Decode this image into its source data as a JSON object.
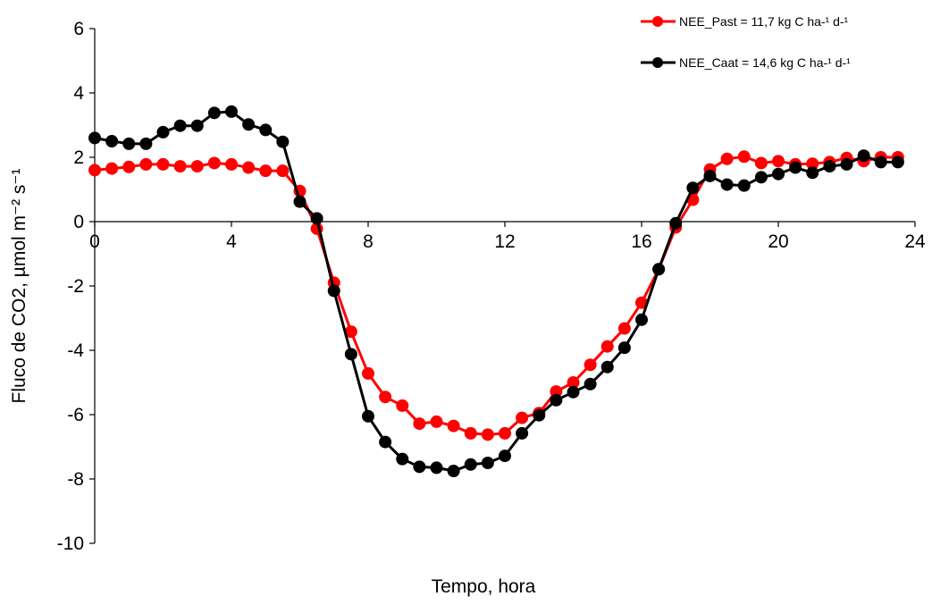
{
  "chart_data": {
    "type": "line",
    "title": "",
    "xlabel": "Tempo, hora",
    "ylabel": "Fluco de CO2, µmol m⁻² s⁻¹",
    "xlim": [
      0,
      24
    ],
    "ylim": [
      -10,
      6
    ],
    "xticks": [
      0,
      4,
      8,
      12,
      16,
      20,
      24
    ],
    "yticks": [
      -10,
      -8,
      -6,
      -4,
      -2,
      0,
      2,
      4,
      6
    ],
    "xtick_labels": [
      "0",
      "4",
      "8",
      "12",
      "16",
      "20",
      "24"
    ],
    "ytick_labels": [
      "-10",
      "-8",
      "-6",
      "-4",
      "-2",
      "0",
      "2",
      "4",
      "6"
    ],
    "grid": false,
    "legend_position": "top-right",
    "x": [
      0,
      0.5,
      1,
      1.5,
      2,
      2.5,
      3,
      3.5,
      4,
      4.5,
      5,
      5.5,
      6,
      6.5,
      7,
      7.5,
      8,
      8.5,
      9,
      9.5,
      10,
      10.5,
      11,
      11.5,
      12,
      12.5,
      13,
      13.5,
      14,
      14.5,
      15,
      15.5,
      16,
      16.5,
      17,
      17.5,
      18,
      18.5,
      19,
      19.5,
      20,
      20.5,
      21,
      21.5,
      22,
      22.5,
      23,
      23.5
    ],
    "series": [
      {
        "name": "NEE_Past   = 11,7 kg C ha-¹ d-¹",
        "color": "#ff0000",
        "values": [
          1.6,
          1.65,
          1.7,
          1.78,
          1.78,
          1.72,
          1.72,
          1.82,
          1.78,
          1.68,
          1.58,
          1.58,
          0.95,
          -0.22,
          -1.9,
          -3.42,
          -4.72,
          -5.45,
          -5.72,
          -6.28,
          -6.22,
          -6.35,
          -6.58,
          -6.62,
          -6.58,
          -6.1,
          -5.95,
          -5.28,
          -5.0,
          -4.45,
          -3.88,
          -3.32,
          -2.52,
          -1.48,
          -0.18,
          0.68,
          1.62,
          1.95,
          2.02,
          1.82,
          1.88,
          1.78,
          1.8,
          1.85,
          1.98,
          1.88,
          2.0,
          2.0
        ]
      },
      {
        "name": "NEE_Caat   = 14,6 kg C ha-¹ d-¹",
        "color": "#000000",
        "values": [
          2.6,
          2.5,
          2.42,
          2.42,
          2.78,
          2.98,
          2.98,
          3.38,
          3.42,
          3.02,
          2.85,
          2.48,
          0.62,
          0.1,
          -2.15,
          -4.12,
          -6.05,
          -6.85,
          -7.38,
          -7.62,
          -7.65,
          -7.75,
          -7.55,
          -7.5,
          -7.28,
          -6.58,
          -6.02,
          -5.55,
          -5.3,
          -5.05,
          -4.52,
          -3.92,
          -3.05,
          -1.48,
          -0.05,
          1.05,
          1.42,
          1.15,
          1.12,
          1.38,
          1.48,
          1.68,
          1.52,
          1.72,
          1.78,
          2.05,
          1.85,
          1.85
        ]
      }
    ]
  }
}
